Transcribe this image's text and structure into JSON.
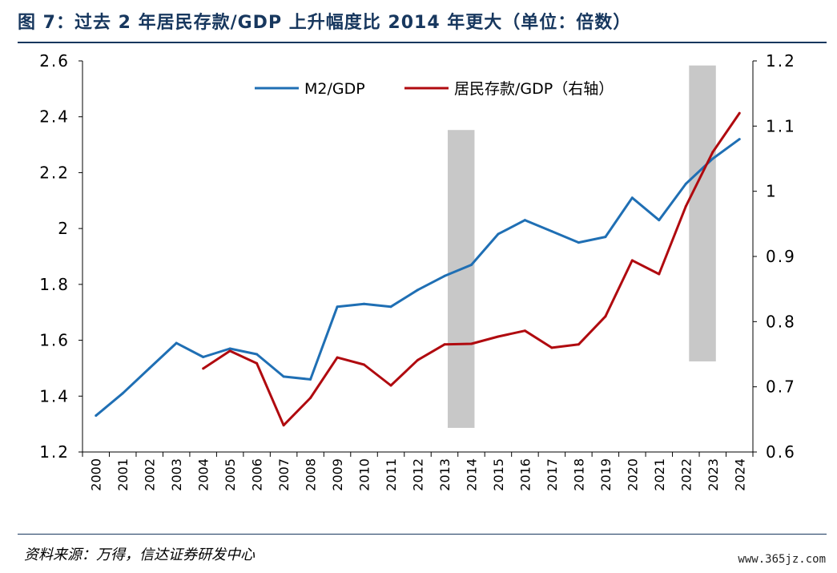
{
  "title": "图 7：过去 2 年居民存款/GDP 上升幅度比 2014 年更大（单位：倍数）",
  "source": "资料来源：万得，信达证券研发中心",
  "watermark": "www.365jz.com",
  "chart_data": {
    "type": "line",
    "x": [
      "2000",
      "2001",
      "2002",
      "2003",
      "2004",
      "2005",
      "2006",
      "2007",
      "2008",
      "2009",
      "2010",
      "2011",
      "2012",
      "2013",
      "2014",
      "2015",
      "2016",
      "2017",
      "2018",
      "2019",
      "2020",
      "2021",
      "2022",
      "2023",
      "2024"
    ],
    "series": [
      {
        "name": "M2/GDP",
        "axis": "left",
        "color": "#1f6fb4",
        "values": [
          1.33,
          1.41,
          1.5,
          1.59,
          1.54,
          1.57,
          1.55,
          1.47,
          1.46,
          1.72,
          1.73,
          1.72,
          1.78,
          1.83,
          1.87,
          1.98,
          2.03,
          1.99,
          1.95,
          1.97,
          2.11,
          2.03,
          2.16,
          2.25,
          2.32
        ]
      },
      {
        "name": "居民存款/GDP（右轴）",
        "axis": "right",
        "color": "#b00a0f",
        "values": [
          null,
          null,
          null,
          null,
          0.728,
          0.755,
          0.736,
          0.641,
          0.683,
          0.745,
          0.734,
          0.702,
          0.741,
          0.765,
          0.766,
          0.777,
          0.786,
          0.76,
          0.765,
          0.808,
          0.894,
          0.873,
          0.977,
          1.06,
          1.12
        ]
      }
    ],
    "ylim_left": [
      1.2,
      2.6
    ],
    "yticks_left": [
      "1.2",
      "1.4",
      "1.6",
      "1.8",
      "2",
      "2.2",
      "2.4",
      "2.6"
    ],
    "ylim_right": [
      0.6,
      1.2
    ],
    "yticks_right": [
      "0.6",
      "0.7",
      "0.8",
      "0.9",
      "1",
      "1.1",
      "1.2"
    ],
    "shaded_regions": [
      {
        "from": "2013",
        "to": "2014",
        "ymin_right": 0.637,
        "ymax_right": 1.094
      },
      {
        "from": "2022",
        "to": "2023",
        "ymin_right": 0.739,
        "ymax_right": 1.193
      }
    ],
    "legend_position": "top-center",
    "shade_color": "#c8c8c8"
  }
}
